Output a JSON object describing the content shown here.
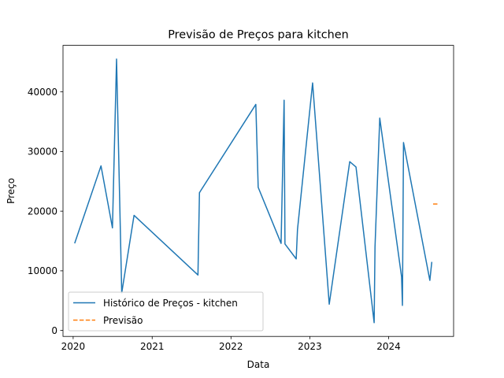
{
  "chart_data": {
    "type": "line",
    "title": "Previsão de Preços para kitchen",
    "xlabel": "Data",
    "ylabel": "Preço",
    "x_ticks": [
      "2020",
      "2021",
      "2022",
      "2023",
      "2024"
    ],
    "y_ticks": [
      0,
      10000,
      20000,
      30000,
      40000
    ],
    "y_tick_labels": [
      "0",
      "10000",
      "20000",
      "30000",
      "40000"
    ],
    "xlim": [
      "2019-11-15",
      "2024-10-28"
    ],
    "ylim": [
      -1000,
      47800
    ],
    "grid": false,
    "legend_position": "lower-left",
    "series": [
      {
        "name": "Histórico de Preços - kitchen",
        "color": "#1f77b4",
        "style": "solid",
        "points": [
          {
            "x": "2020-01-08",
            "y": 14600
          },
          {
            "x": "2020-05-09",
            "y": 27600
          },
          {
            "x": "2020-07-01",
            "y": 17200
          },
          {
            "x": "2020-07-20",
            "y": 45500
          },
          {
            "x": "2020-08-13",
            "y": 6300
          },
          {
            "x": "2020-10-09",
            "y": 19300
          },
          {
            "x": "2021-08-01",
            "y": 9300
          },
          {
            "x": "2021-08-08",
            "y": 23100
          },
          {
            "x": "2022-04-26",
            "y": 37900
          },
          {
            "x": "2022-05-07",
            "y": 24000
          },
          {
            "x": "2022-08-21",
            "y": 14600
          },
          {
            "x": "2022-09-04",
            "y": 38600
          },
          {
            "x": "2022-09-08",
            "y": 14500
          },
          {
            "x": "2022-10-30",
            "y": 12000
          },
          {
            "x": "2022-11-05",
            "y": 16900
          },
          {
            "x": "2023-01-14",
            "y": 41500
          },
          {
            "x": "2023-04-01",
            "y": 4400
          },
          {
            "x": "2023-07-05",
            "y": 28300
          },
          {
            "x": "2023-08-03",
            "y": 27400
          },
          {
            "x": "2023-10-26",
            "y": 1300
          },
          {
            "x": "2023-10-30",
            "y": 14000
          },
          {
            "x": "2023-11-21",
            "y": 35600
          },
          {
            "x": "2024-03-01",
            "y": 9000
          },
          {
            "x": "2024-03-05",
            "y": 4200
          },
          {
            "x": "2024-03-10",
            "y": 31500
          },
          {
            "x": "2024-07-10",
            "y": 8400
          },
          {
            "x": "2024-07-19",
            "y": 11500
          }
        ]
      },
      {
        "name": "Previsão",
        "color": "#ff7f0e",
        "style": "dashed",
        "points": [
          {
            "x": "2024-07-25",
            "y": 21200
          },
          {
            "x": "2024-08-22",
            "y": 21200
          }
        ]
      }
    ]
  }
}
